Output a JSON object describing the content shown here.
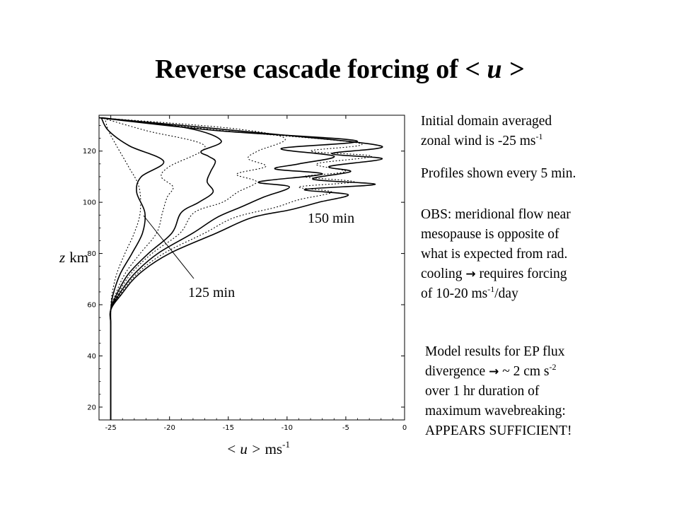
{
  "slide": {
    "title_pre": "Reverse cascade forcing of ",
    "title_var": "< u >"
  },
  "chart_data": {
    "type": "line",
    "title": "",
    "xlabel_var": "< u >",
    "xlabel_unit": "ms",
    "xlabel_unit_exp": "-1",
    "ylabel_var": "z",
    "ylabel_unit": "km",
    "xlim": [
      -26,
      0
    ],
    "ylim": [
      15,
      134
    ],
    "xticks": [
      -25,
      -20,
      -15,
      -10,
      -5,
      0
    ],
    "yticks": [
      20,
      40,
      60,
      80,
      100,
      120
    ],
    "tick_labels_x": [
      "-25",
      "-20",
      "-15",
      "-10",
      "-5",
      "0"
    ],
    "tick_labels_y": [
      "20",
      "40",
      "60",
      "80",
      "100",
      "120"
    ],
    "grid": false,
    "profile_interval": "5 min",
    "series": [
      {
        "x": [
          -25,
          -25,
          -25,
          -25,
          -24.9,
          -24.5,
          -23.8,
          -23,
          -22.5,
          -22.6,
          -23.5,
          -24.5,
          -25.2,
          -25.5
        ],
        "y": [
          15,
          40,
          52,
          58,
          64,
          72,
          80,
          88,
          96,
          106,
          114,
          122,
          128,
          133
        ]
      },
      {
        "x": [
          -25,
          -25,
          -25,
          -25,
          -24.8,
          -24.2,
          -23.2,
          -22.3,
          -22.1,
          -22.8,
          -22.4,
          -20.5,
          -23.4,
          -25.2,
          -25.8
        ],
        "y": [
          15,
          40,
          52,
          58,
          64,
          72,
          80,
          88,
          96,
          104,
          110,
          116,
          122,
          128,
          133
        ]
      },
      {
        "x": [
          -25,
          -25,
          -25,
          -25,
          -24.6,
          -23.8,
          -22.5,
          -21.1,
          -20.6,
          -20.2,
          -19.7,
          -20.7,
          -20,
          -17,
          -22,
          -25.8
        ],
        "y": [
          15,
          40,
          52,
          58,
          64,
          72,
          80,
          88,
          96,
          102,
          106,
          110,
          114,
          122,
          128,
          133
        ]
      },
      {
        "x": [
          -25,
          -25,
          -25,
          -25,
          -24.5,
          -23.5,
          -21.8,
          -19.8,
          -19,
          -17.5,
          -16.3,
          -16.8,
          -16.5,
          -16.1,
          -16.7,
          -17.3,
          -15.6,
          -18.5,
          -25.8
        ],
        "y": [
          15,
          40,
          52,
          58,
          64,
          72,
          80,
          88,
          96,
          100,
          104,
          108,
          112,
          116,
          118,
          120,
          124,
          129,
          133
        ]
      },
      {
        "x": [
          -25,
          -25,
          -25,
          -25,
          -24.4,
          -23.3,
          -21.5,
          -19.1,
          -17.9,
          -15.5,
          -14.2,
          -12.6,
          -14.3,
          -11.8,
          -13.3,
          -12.5,
          -10.2,
          -15,
          -26
        ],
        "y": [
          15,
          40,
          52,
          58,
          64,
          72,
          80,
          88,
          96,
          100,
          104,
          108,
          111,
          114,
          117,
          120,
          125,
          129,
          133
        ]
      },
      {
        "x": [
          -25,
          -25,
          -25,
          -25,
          -24.3,
          -23,
          -21,
          -18,
          -16,
          -14,
          -12,
          -9.8,
          -12.4,
          -7,
          -11,
          -9,
          -6,
          -10.5,
          -4.1,
          -16,
          -26
        ],
        "y": [
          15,
          40,
          52,
          58,
          64,
          72,
          80,
          88,
          94,
          98,
          102,
          106,
          108,
          111,
          113,
          115,
          118,
          121,
          124,
          128,
          133
        ]
      },
      {
        "x": [
          -25,
          -25,
          -25,
          -25,
          -24.2,
          -22.8,
          -20.5,
          -17,
          -14.5,
          -11,
          -9,
          -6.2,
          -9,
          -4.3,
          -8.5,
          -5,
          -7.5,
          -2.8,
          -8,
          -3.8,
          -15.5,
          -26
        ],
        "y": [
          15,
          40,
          52,
          58,
          64,
          72,
          80,
          88,
          94,
          98,
          101,
          104,
          106,
          108,
          110,
          112,
          115,
          118,
          120,
          123,
          128,
          133
        ]
      },
      {
        "x": [
          -25,
          -25,
          -25,
          -25,
          -24.1,
          -22.6,
          -20,
          -16,
          -13,
          -9.8,
          -7.3,
          -4.8,
          -8.5,
          -2.5,
          -7.8,
          -4.6,
          -6.4,
          -1.9,
          -6.2,
          -2,
          -12,
          -26
        ],
        "y": [
          15,
          40,
          52,
          58,
          64,
          72,
          80,
          88,
          94,
          97,
          100,
          103,
          105,
          107,
          109,
          112,
          114,
          117,
          119,
          122,
          127,
          133
        ]
      }
    ],
    "annotations": [
      {
        "text": "150 min"
      },
      {
        "text": "125 min"
      }
    ]
  },
  "notes": {
    "n1_line1": "Initial domain averaged",
    "n1_line2": "zonal wind is -25 ms",
    "n1_exp": "-1",
    "n2": "Profiles shown every 5 min.",
    "n3_line1": "OBS: meridional flow near",
    "n3_line2": "mesopause is opposite of",
    "n3_line3": "what is expected from rad.",
    "n3_line4_a": "cooling ",
    "n3_line4_b": " requires forcing",
    "n3_line5_a": "of 10-20 ms",
    "n3_line5_exp": "-1",
    "n3_line5_b": "/day",
    "n4_line1": "Model results for EP flux",
    "n4_line2_a": "divergence ",
    "n4_line2_b": " ~ 2 cm s",
    "n4_line2_exp": "-2",
    "n4_line3": "over 1 hr duration of",
    "n4_line4": "maximum wavebreaking:",
    "n4_line5": "APPEARS SUFFICIENT!",
    "arrow_glyph": "→"
  }
}
